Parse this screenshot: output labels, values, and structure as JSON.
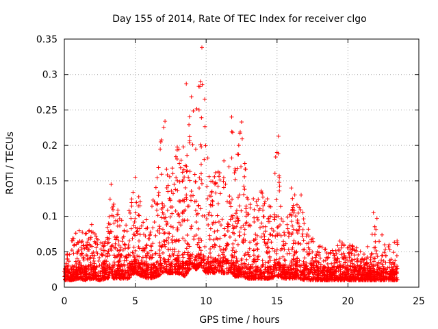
{
  "chart_data": {
    "type": "scatter",
    "title": "Day 155 of 2014, Rate Of TEC Index for receiver clgo",
    "xlabel": "GPS time / hours",
    "ylabel": "ROTI / TECUs",
    "xlim": [
      0,
      25
    ],
    "ylim": [
      0,
      0.35
    ],
    "xticks": [
      0,
      5,
      10,
      15,
      20,
      25
    ],
    "xtick_labels": [
      "0",
      "5",
      "10",
      "15",
      "20",
      "25"
    ],
    "yticks": [
      0,
      0.05,
      0.1,
      0.15,
      0.2,
      0.25,
      0.3,
      0.35
    ],
    "ytick_labels": [
      "0",
      "0.05",
      "0.1",
      "0.15",
      "0.2",
      "0.25",
      "0.3",
      "0.35"
    ],
    "grid": true,
    "marker": "+",
    "color": "#ff0000",
    "series": [
      {
        "name": "ROTI",
        "envelope": {
          "x": [
            0.0,
            0.5,
            1.0,
            1.5,
            2.0,
            2.5,
            3.0,
            3.3,
            3.5,
            4.0,
            4.5,
            5.0,
            5.5,
            6.0,
            6.5,
            7.0,
            7.5,
            8.0,
            8.5,
            9.0,
            9.3,
            9.6,
            9.8,
            10.0,
            10.5,
            11.0,
            11.5,
            11.8,
            12.0,
            12.5,
            13.0,
            13.5,
            14.0,
            14.5,
            15.0,
            15.5,
            16.0,
            16.5,
            17.0,
            17.5,
            18.0,
            18.5,
            19.0,
            19.5,
            20.0,
            20.5,
            21.0,
            21.5,
            22.0,
            22.5,
            23.0,
            23.5
          ],
          "peak": [
            0.04,
            0.07,
            0.08,
            0.08,
            0.09,
            0.06,
            0.08,
            0.14,
            0.12,
            0.1,
            0.11,
            0.15,
            0.11,
            0.09,
            0.16,
            0.23,
            0.18,
            0.2,
            0.17,
            0.28,
            0.24,
            0.34,
            0.29,
            0.2,
            0.17,
            0.18,
            0.2,
            0.24,
            0.18,
            0.23,
            0.12,
            0.13,
            0.16,
            0.11,
            0.21,
            0.1,
            0.13,
            0.14,
            0.09,
            0.07,
            0.06,
            0.06,
            0.05,
            0.07,
            0.06,
            0.06,
            0.05,
            0.06,
            0.1,
            0.07,
            0.06,
            0.07
          ],
          "base": [
            0.01,
            0.01,
            0.012,
            0.01,
            0.012,
            0.01,
            0.012,
            0.015,
            0.012,
            0.012,
            0.012,
            0.02,
            0.015,
            0.012,
            0.015,
            0.02,
            0.02,
            0.02,
            0.015,
            0.03,
            0.025,
            0.03,
            0.025,
            0.02,
            0.02,
            0.02,
            0.02,
            0.02,
            0.015,
            0.015,
            0.012,
            0.012,
            0.012,
            0.012,
            0.015,
            0.012,
            0.012,
            0.012,
            0.01,
            0.01,
            0.01,
            0.01,
            0.01,
            0.01,
            0.01,
            0.01,
            0.01,
            0.01,
            0.01,
            0.01,
            0.01,
            0.01
          ]
        },
        "outliers": [
          {
            "x": 9.7,
            "y": 0.338
          },
          {
            "x": 8.6,
            "y": 0.287
          },
          {
            "x": 9.6,
            "y": 0.29
          },
          {
            "x": 9.9,
            "y": 0.265
          },
          {
            "x": 9.5,
            "y": 0.25
          },
          {
            "x": 11.8,
            "y": 0.24
          },
          {
            "x": 12.5,
            "y": 0.233
          },
          {
            "x": 7.1,
            "y": 0.234
          },
          {
            "x": 15.1,
            "y": 0.213
          },
          {
            "x": 6.8,
            "y": 0.205
          },
          {
            "x": 8.4,
            "y": 0.198
          },
          {
            "x": 15.0,
            "y": 0.19
          },
          {
            "x": 12.3,
            "y": 0.2
          },
          {
            "x": 16.0,
            "y": 0.14
          },
          {
            "x": 21.8,
            "y": 0.105
          },
          {
            "x": 3.3,
            "y": 0.145
          },
          {
            "x": 5.0,
            "y": 0.155
          },
          {
            "x": 16.7,
            "y": 0.13
          }
        ]
      }
    ]
  }
}
